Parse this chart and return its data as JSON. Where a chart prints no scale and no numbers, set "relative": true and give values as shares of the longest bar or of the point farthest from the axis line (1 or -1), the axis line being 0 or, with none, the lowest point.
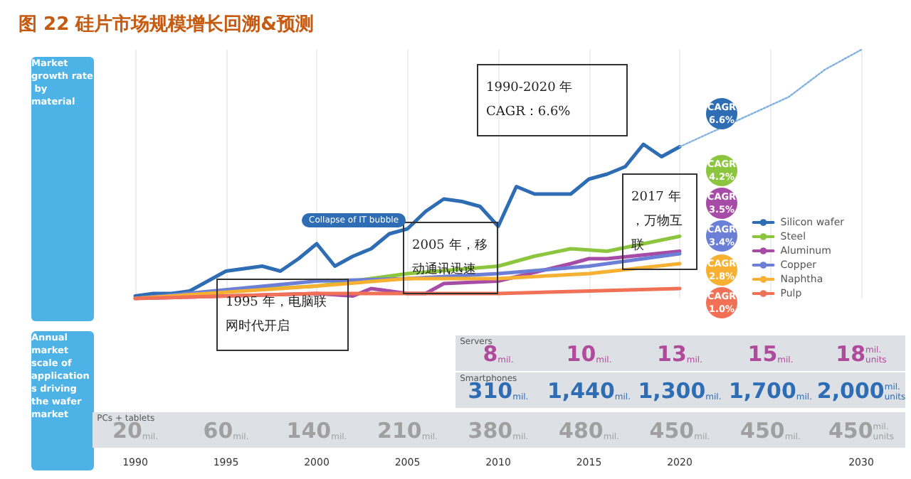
{
  "chart_data": [
    {
      "type": "line",
      "title": "图 22 硅片市场规模增长回溯&预测",
      "relative": true,
      "xlim": [
        1990,
        2030
      ],
      "xticks": [
        1990,
        1995,
        2000,
        2005,
        2010,
        2015,
        2020,
        {
          "value": 2025,
          "label": null
        },
        2030
      ],
      "grid": "x",
      "legend": "bottom right",
      "marker": "none",
      "series": [
        {
          "name": "Silicon wafer",
          "color": "#2e6db4",
          "x": [
            1990,
            1991,
            1992,
            1993,
            1994,
            1995,
            1996,
            1997,
            1998,
            1999,
            2000,
            2001,
            2002,
            2003,
            2004,
            2005,
            2006,
            2007,
            2008,
            2009,
            2010,
            2011,
            2012,
            2014,
            2015,
            2016,
            2017,
            2018,
            2019,
            2020
          ],
          "values": [
            0.01,
            0.02,
            0.02,
            0.03,
            0.07,
            0.11,
            0.12,
            0.13,
            0.11,
            0.16,
            0.22,
            0.13,
            0.17,
            0.2,
            0.26,
            0.28,
            0.35,
            0.4,
            0.39,
            0.37,
            0.29,
            0.45,
            0.42,
            0.42,
            0.48,
            0.5,
            0.53,
            0.62,
            0.57,
            0.61
          ]
        },
        {
          "name": "Steel",
          "color": "#8cc63f",
          "x": [
            1990,
            1995,
            2000,
            2005,
            2010,
            2012,
            2014,
            2016,
            2020
          ],
          "values": [
            0,
            0.03,
            0.05,
            0.1,
            0.13,
            0.17,
            0.2,
            0.19,
            0.25
          ]
        },
        {
          "name": "Aluminum",
          "color": "#a64ca6",
          "x": [
            1990,
            2000,
            2002,
            2003,
            2005,
            2006,
            2007,
            2010,
            2014,
            2015,
            2016,
            2020
          ],
          "values": [
            0,
            0.02,
            0.01,
            0.04,
            0.02,
            0.02,
            0.06,
            0.07,
            0.14,
            0.16,
            0.16,
            0.19
          ]
        },
        {
          "name": "Copper",
          "color": "#6b7fd7",
          "x": [
            1990,
            2000,
            2005,
            2010,
            2015,
            2020
          ],
          "values": [
            0,
            0.07,
            0.08,
            0.1,
            0.13,
            0.18
          ]
        },
        {
          "name": "Naphtha",
          "color": "#f6b133",
          "x": [
            1990,
            2000,
            2005,
            2010,
            2015,
            2020
          ],
          "values": [
            0,
            0.05,
            0.08,
            0.08,
            0.1,
            0.14
          ]
        },
        {
          "name": "Pulp",
          "color": "#f07156",
          "x": [
            1990,
            2000,
            2010,
            2015,
            2020
          ],
          "values": [
            0,
            0.02,
            0.02,
            0.03,
            0.04
          ]
        },
        {
          "color": "#7fb0e0",
          "line_style": "dotted",
          "x": [
            2020,
            2023,
            2026,
            2028,
            2030
          ],
          "values": [
            0.61,
            0.71,
            0.81,
            0.92,
            1
          ]
        }
      ],
      "annotations": [
        "1990-2020 年\nCAGR：6.6%",
        "1995 年，电脑联网时代开启",
        "2005 年，移动通讯迅速",
        "2017 年，万物互联",
        "Collapse of IT bubble",
        "CAGR\n6.6%",
        "CAGR\n4.2%",
        "CAGR\n3.5%",
        "CAGR\n3.4%",
        "CAGR\n2.8%",
        "CAGR\n1.0%",
        "Market growth rate by material",
        "Annual market scale of applications driving the wafer market"
      ]
    },
    {
      "type": "other",
      "y_categories": [
        "Servers",
        "Smartphones",
        "PCs + tablets"
      ],
      "colors": [
        "#b04a9a",
        "#2e6db4",
        "#a0a0a0"
      ],
      "cell_labels": [
        [
          null,
          null,
          null,
          null,
          "8mil.",
          "10mil.",
          "13mil.",
          "15mil.",
          "18mil.units"
        ],
        [
          null,
          null,
          null,
          null,
          "310mil.",
          "1,440mil.",
          "1,300mil.",
          "1,700mil.",
          "2,000mil.units"
        ],
        [
          "20mil.",
          "60mil.",
          "140mil.",
          "210mil.",
          "380mil.",
          "480mil.",
          "450mil.",
          "450mil.",
          "450mil.units"
        ]
      ]
    }
  ]
}
